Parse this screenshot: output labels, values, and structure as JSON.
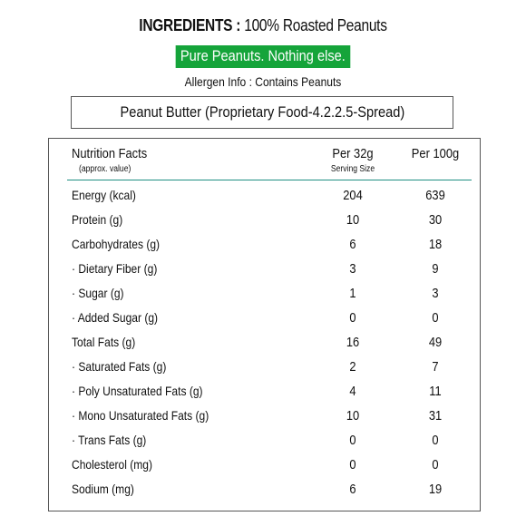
{
  "header": {
    "ingredients_label": "INGREDIENTS :",
    "ingredients_value": "100% Roasted Peanuts",
    "tagline": "Pure Peanuts. Nothing else.",
    "allergen": "Allergen Info : Contains Peanuts",
    "product": "Peanut Butter (Proprietary Food-4.2.2.5-Spread)"
  },
  "table": {
    "title": "Nutrition Facts",
    "subtitle": "(approx. value)",
    "col1": "Per 32g",
    "col1_sub": "Serving Size",
    "col2": "Per 100g",
    "rows": [
      {
        "name": "Energy (kcal)",
        "v1": "204",
        "v2": "639"
      },
      {
        "name": "Protein (g)",
        "v1": "10",
        "v2": "30"
      },
      {
        "name": "Carbohydrates (g)",
        "v1": "6",
        "v2": "18"
      },
      {
        "name": "· Dietary Fiber (g)",
        "v1": "3",
        "v2": "9"
      },
      {
        "name": "· Sugar (g)",
        "v1": "1",
        "v2": "3"
      },
      {
        "name": "· Added Sugar (g)",
        "v1": "0",
        "v2": "0"
      },
      {
        "name": "Total Fats (g)",
        "v1": "16",
        "v2": "49"
      },
      {
        "name": "· Saturated Fats (g)",
        "v1": "2",
        "v2": "7"
      },
      {
        "name": "· Poly Unsaturated Fats (g)",
        "v1": "4",
        "v2": "11"
      },
      {
        "name": "· Mono Unsaturated Fats (g)",
        "v1": "10",
        "v2": "31"
      },
      {
        "name": "· Trans Fats (g)",
        "v1": "0",
        "v2": "0"
      },
      {
        "name": "Cholesterol (mg)",
        "v1": "0",
        "v2": "0"
      },
      {
        "name": "Sodium (mg)",
        "v1": "6",
        "v2": "19"
      }
    ]
  },
  "colors": {
    "tagline_bg": "#15a43a",
    "header_rule": "#1f8f82"
  }
}
